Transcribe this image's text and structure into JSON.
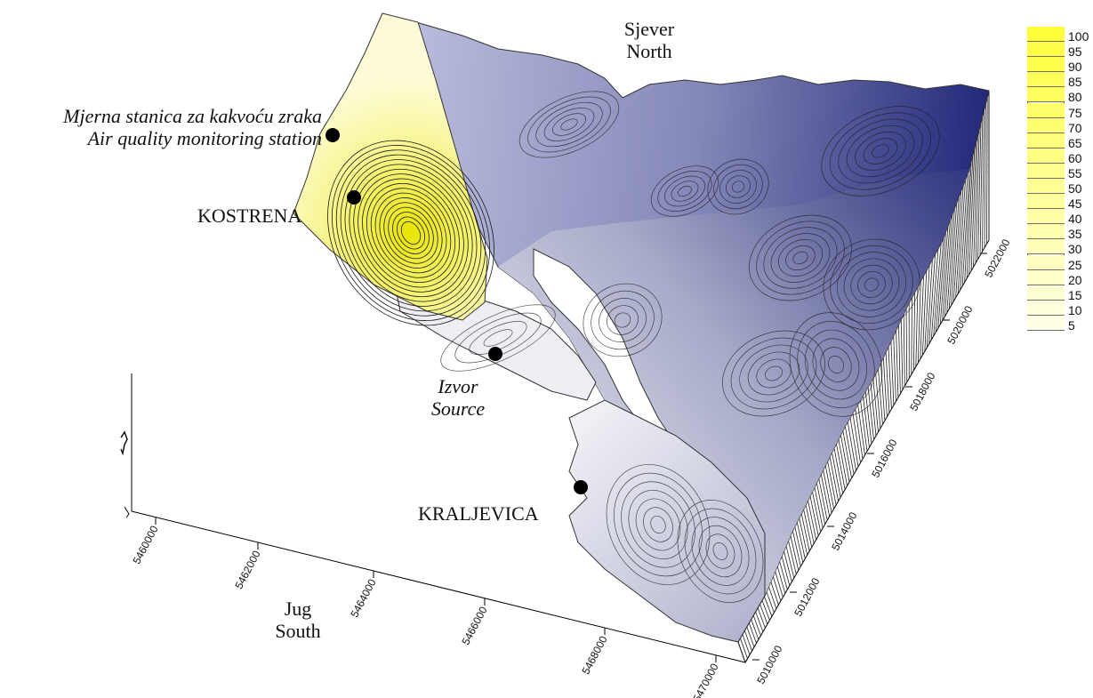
{
  "labels": {
    "north_hr": "Sjever",
    "north_en": "North",
    "station_hr": "Mjerna stanica za kakvoću zraka",
    "station_en": "Air quality monitoring station",
    "kostrena": "KOSTRENA",
    "source_hr": "Izvor",
    "source_en": "Source",
    "kraljevica": "KRALJEVICA",
    "south_hr": "Jug",
    "south_en": "South"
  },
  "axes": {
    "x_ticks": [
      "5460000",
      "5462000",
      "5464000",
      "5466000",
      "5468000",
      "5470000"
    ],
    "y_ticks": [
      "5010000",
      "5012000",
      "5014000",
      "5016000",
      "5018000",
      "5020000",
      "5022000"
    ]
  },
  "legend": {
    "values": [
      "100",
      "95",
      "90",
      "85",
      "80",
      "75",
      "70",
      "65",
      "60",
      "55",
      "50",
      "45",
      "40",
      "35",
      "30",
      "25",
      "20",
      "15",
      "10",
      "5"
    ],
    "color_high": "#ffff3c",
    "color_low": "#ffffe6"
  },
  "colors": {
    "terrain_dark": "#1f2577",
    "terrain_mid": "#6a6fa8",
    "terrain_light": "#e4e5ef",
    "plume": "#f3f26a",
    "marker": "#000000"
  }
}
